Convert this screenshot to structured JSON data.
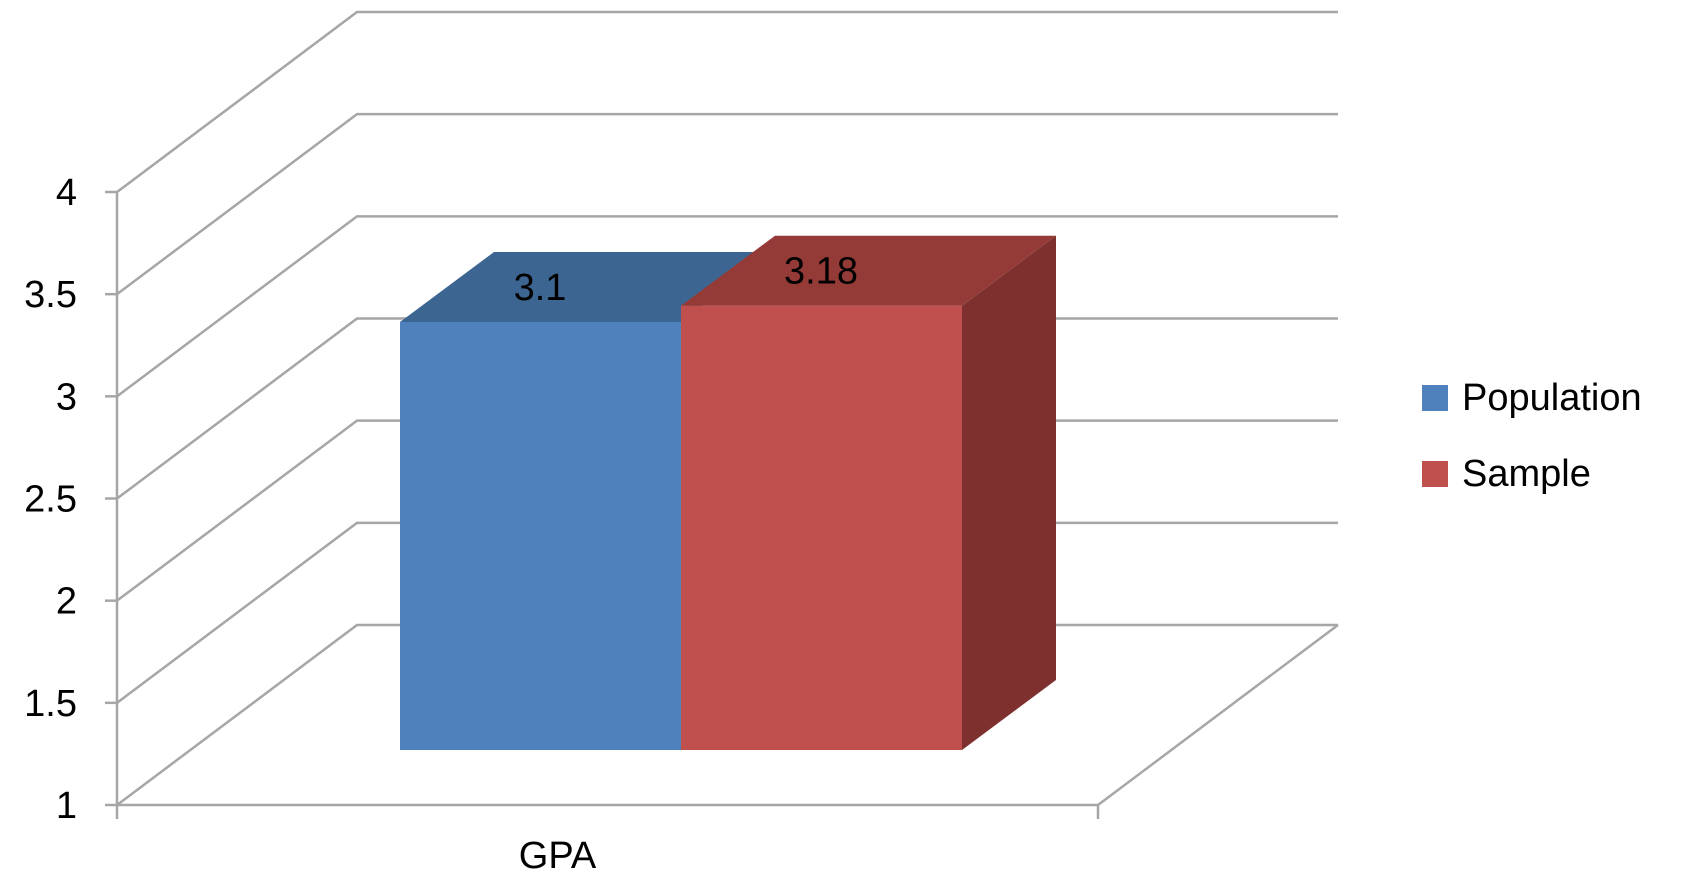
{
  "chart_data": {
    "type": "bar",
    "style": "3d-clustered-column",
    "categories": [
      "GPA"
    ],
    "series": [
      {
        "name": "Population",
        "values": [
          3.1
        ],
        "color": "#4f81bd",
        "top_color": "#3d6591",
        "side_color": "#35577d"
      },
      {
        "name": "Sample",
        "values": [
          3.18
        ],
        "color": "#c0504d",
        "top_color": "#943a37",
        "side_color": "#7d302e"
      }
    ],
    "data_labels": [
      "3.1",
      "3.18"
    ],
    "ylim": [
      1,
      4
    ],
    "yticks": [
      1,
      1.5,
      2,
      2.5,
      3,
      3.5,
      4
    ],
    "ytick_labels": [
      "1",
      "1.5",
      "2",
      "2.5",
      "3",
      "3.5",
      "4"
    ],
    "grid": true,
    "legend": {
      "position": "right",
      "entries": [
        "Population",
        "Sample"
      ]
    },
    "title": "",
    "xlabel": "",
    "ylabel": ""
  }
}
